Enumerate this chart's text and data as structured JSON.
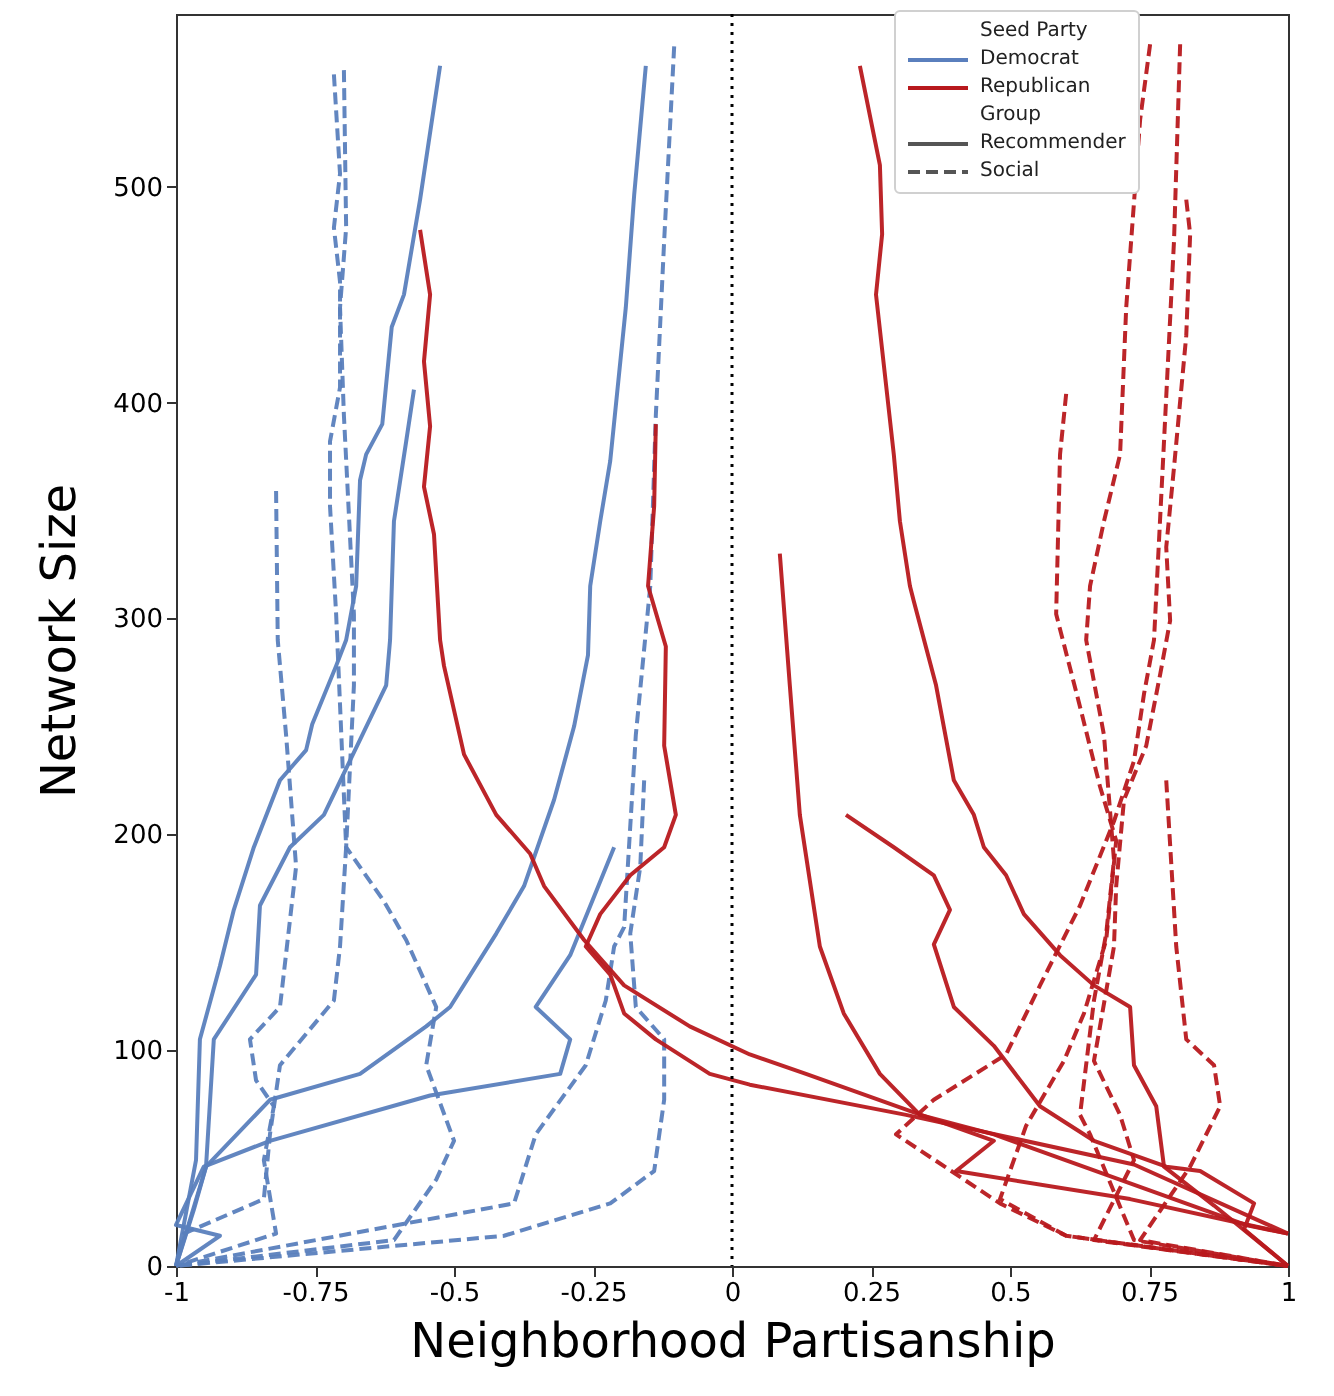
{
  "chart_data": {
    "type": "line",
    "xlabel": "Neighborhood Partisanship",
    "ylabel": "Network Size",
    "legend_title": "Seed Party",
    "legend": "top right",
    "grid": false,
    "xlim": [
      -1,
      1
    ],
    "xticks": [
      -1,
      -0.75,
      -0.5,
      -0.25,
      0,
      0.25,
      0.5,
      0.75,
      1
    ],
    "ylim": [
      0,
      580
    ],
    "yticks": [
      0,
      100,
      200,
      300,
      400,
      500
    ],
    "ref_lines": [
      {
        "axis": "x",
        "value": 0,
        "line_style": "dotted",
        "color": "#000000"
      }
    ],
    "annotations": [
      "Group",
      "Recommender",
      "Social"
    ],
    "series": [
      {
        "name": "Democrat",
        "color": "#5a7fbd",
        "line_style": "solid",
        "x": [
          -0.525,
          -0.561,
          -0.59,
          -0.612,
          -0.629,
          -0.658,
          -0.669,
          -0.676,
          -0.694,
          -0.712,
          -0.755,
          -0.766,
          -0.813,
          -0.86,
          -0.896,
          -0.921,
          -0.957,
          -0.964,
          -1
        ],
        "values": [
          556,
          494,
          450,
          435,
          390,
          376,
          364,
          315,
          290,
          278,
          251,
          239,
          225,
          194,
          165,
          139,
          105,
          49,
          0
        ]
      },
      {
        "color": "#5a7fbd",
        "line_style": "solid",
        "x": [
          -0.572,
          -0.586,
          -0.608,
          -0.615,
          -0.622,
          -0.734,
          -0.795,
          -0.849,
          -0.856,
          -0.932,
          -0.946,
          -0.968,
          -1
        ],
        "values": [
          406,
          382,
          345,
          290,
          269,
          209,
          194,
          167,
          135,
          105,
          46,
          26,
          0
        ]
      },
      {
        "color": "#5a7fbd",
        "line_style": "solid",
        "x": [
          -0.155,
          -0.176,
          -0.191,
          -0.219,
          -0.237,
          -0.255,
          -0.259,
          -0.284,
          -0.32,
          -0.374,
          -0.424,
          -0.507,
          -0.55,
          -0.669,
          -0.831,
          -0.946,
          -1
        ],
        "values": [
          556,
          496,
          444,
          373,
          345,
          315,
          283,
          250,
          216,
          176,
          154,
          120,
          111,
          89,
          77,
          46,
          0
        ]
      },
      {
        "color": "#5a7fbd",
        "line_style": "solid",
        "x": [
          -0.212,
          -0.291,
          -0.353,
          -0.291,
          -0.309,
          -0.543,
          -0.831,
          -0.95,
          -1,
          -0.921,
          -1
        ],
        "values": [
          194,
          144,
          120,
          105,
          89,
          79,
          58,
          46,
          19,
          14,
          0
        ]
      },
      {
        "color": "#5a7fbd",
        "line_style": "dashed",
        "x": [
          -0.82,
          -0.817,
          -0.802,
          -0.784,
          -0.813,
          -0.867,
          -0.856,
          -0.824,
          -0.842,
          -0.82,
          -1
        ],
        "values": [
          359,
          290,
          246,
          185,
          120,
          105,
          86,
          74,
          49,
          15,
          0
        ]
      },
      {
        "color": "#5a7fbd",
        "line_style": "dashed",
        "x": [
          -0.716,
          -0.705,
          -0.716,
          -0.705,
          -0.705,
          -0.723,
          -0.723,
          -0.712,
          -0.694,
          -0.705,
          -0.716,
          -0.813,
          -0.831,
          -0.842,
          -0.986,
          -1
        ],
        "values": [
          552,
          506,
          481,
          456,
          407,
          382,
          352,
          302,
          194,
          148,
          123,
          93,
          61,
          31,
          15,
          0
        ]
      },
      {
        "color": "#5a7fbd",
        "line_style": "dashed",
        "x": [
          -0.698,
          -0.694,
          -0.705,
          -0.698,
          -0.68,
          -0.68,
          -0.694,
          -0.626,
          -0.586,
          -0.532,
          -0.55,
          -0.5,
          -0.532,
          -0.608,
          -1
        ],
        "values": [
          554,
          481,
          444,
          394,
          302,
          269,
          194,
          169,
          151,
          120,
          93,
          58,
          40,
          12,
          0
        ]
      },
      {
        "color": "#5a7fbd",
        "line_style": "dashed",
        "x": [
          -0.104,
          -0.122,
          -0.137,
          -0.147,
          -0.173,
          -0.194,
          -0.212,
          -0.227,
          -0.263,
          -0.353,
          -0.392,
          -1
        ],
        "values": [
          565,
          475,
          394,
          315,
          246,
          157,
          148,
          123,
          93,
          61,
          29,
          0
        ]
      },
      {
        "color": "#5a7fbd",
        "line_style": "dashed",
        "x": [
          -0.158,
          -0.165,
          -0.183,
          -0.173,
          -0.122,
          -0.122,
          -0.14,
          -0.219,
          -0.41,
          -1
        ],
        "values": [
          225,
          185,
          154,
          120,
          105,
          77,
          44,
          29,
          14,
          0
        ]
      },
      {
        "name": "Republican",
        "color": "#b8191d",
        "line_style": "solid",
        "x": [
          -0.561,
          -0.543,
          -0.554,
          -0.543,
          -0.554,
          -0.536,
          -0.525,
          -0.518,
          -0.482,
          -0.424,
          -0.363,
          -0.338,
          -0.266,
          -0.194,
          -0.076,
          0.032,
          0.133,
          0.471,
          0.403,
          0.716,
          1
        ],
        "values": [
          480,
          450,
          419,
          389,
          361,
          339,
          290,
          278,
          237,
          209,
          191,
          176,
          151,
          130,
          111,
          98,
          89,
          58,
          44,
          31,
          15
        ]
      },
      {
        "color": "#b8191d",
        "line_style": "solid",
        "x": [
          -0.137,
          -0.14,
          -0.151,
          -0.119,
          -0.122,
          -0.101,
          -0.122,
          -0.183,
          -0.237,
          -0.263,
          -0.219,
          -0.194,
          -0.137,
          -0.04,
          0.032,
          0.313,
          0.723,
          1
        ],
        "values": [
          390,
          352,
          315,
          287,
          241,
          209,
          194,
          181,
          163,
          148,
          135,
          117,
          105,
          89,
          84,
          70,
          47,
          15
        ]
      },
      {
        "color": "#b8191d",
        "line_style": "solid",
        "x": [
          0.23,
          0.266,
          0.27,
          0.259,
          0.291,
          0.302,
          0.32,
          0.327,
          0.367,
          0.399,
          0.435,
          0.453,
          0.493,
          0.525,
          0.59,
          0.651,
          0.716,
          0.723,
          0.763,
          0.777,
          0.867,
          1
        ],
        "values": [
          556,
          510,
          478,
          450,
          376,
          345,
          315,
          308,
          269,
          225,
          209,
          194,
          181,
          163,
          144,
          130,
          120,
          93,
          74,
          46,
          28,
          0
        ]
      },
      {
        "color": "#b8191d",
        "line_style": "solid",
        "x": [
          0.086,
          0.104,
          0.122,
          0.158,
          0.201,
          0.266,
          0.338,
          0.471,
          0.924,
          1
        ],
        "values": [
          330,
          269,
          209,
          148,
          117,
          89,
          70,
          61,
          19,
          15
        ]
      },
      {
        "color": "#b8191d",
        "line_style": "solid",
        "x": [
          0.205,
          0.291,
          0.363,
          0.392,
          0.363,
          0.399,
          0.471,
          0.554,
          0.651,
          0.781,
          0.842,
          0.939,
          0.921,
          1
        ],
        "values": [
          209,
          194,
          181,
          165,
          149,
          120,
          102,
          74,
          58,
          46,
          44,
          29,
          17,
          0
        ]
      },
      {
        "color": "#b8191d",
        "line_style": "dashed",
        "x": [
          0.752,
          0.734,
          0.709,
          0.698,
          0.669,
          0.644,
          0.637,
          0.669,
          0.687,
          0.673,
          0.651,
          0.626,
          0.644,
          0.723,
          1
        ],
        "values": [
          566,
          531,
          444,
          376,
          345,
          315,
          290,
          246,
          188,
          154,
          123,
          70,
          61,
          12,
          0
        ]
      },
      {
        "color": "#b8191d",
        "line_style": "dashed",
        "x": [
          0.806,
          0.795,
          0.777,
          0.759,
          0.741,
          0.723,
          0.687,
          0.626,
          0.554,
          0.493,
          0.363,
          0.295,
          0.482,
          0.601,
          1
        ],
        "values": [
          566,
          475,
          382,
          290,
          265,
          234,
          206,
          167,
          130,
          98,
          77,
          61,
          29,
          14,
          0
        ]
      },
      {
        "color": "#b8191d",
        "line_style": "dashed",
        "x": [
          0.817,
          0.824,
          0.817,
          0.795,
          0.781,
          0.788,
          0.77,
          0.745,
          0.705,
          0.691,
          0.687,
          0.651,
          0.698,
          0.723,
          0.651,
          1
        ],
        "values": [
          494,
          478,
          431,
          370,
          333,
          299,
          274,
          241,
          216,
          176,
          148,
          95,
          70,
          49,
          12,
          0
        ]
      },
      {
        "color": "#b8191d",
        "line_style": "dashed",
        "x": [
          0.601,
          0.59,
          0.583,
          0.626,
          0.662,
          0.691,
          0.673,
          0.633,
          0.597,
          0.529,
          0.482,
          0.601,
          1
        ],
        "values": [
          404,
          376,
          302,
          259,
          222,
          197,
          151,
          117,
          95,
          65,
          31,
          14,
          0
        ]
      },
      {
        "color": "#b8191d",
        "line_style": "dashed",
        "x": [
          0.781,
          0.799,
          0.817,
          0.867,
          0.878,
          0.824,
          0.734,
          1
        ],
        "values": [
          225,
          148,
          105,
          93,
          74,
          46,
          12,
          0
        ]
      }
    ]
  }
}
